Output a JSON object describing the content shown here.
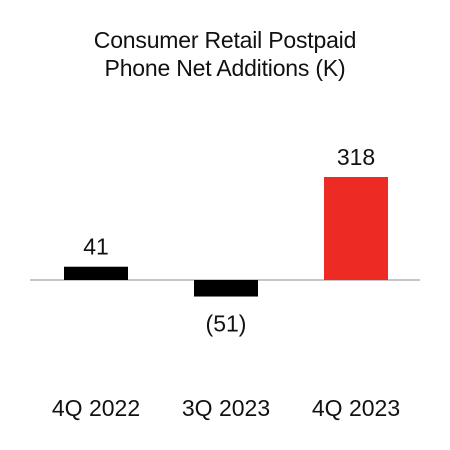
{
  "chart_data": {
    "type": "bar",
    "title_lines": [
      "Consumer Retail Postpaid",
      "Phone Net Additions (K)"
    ],
    "categories": [
      "4Q 2022",
      "3Q 2023",
      "4Q 2023"
    ],
    "values": [
      41,
      -51,
      318
    ],
    "value_labels": [
      "41",
      "(51)",
      "318"
    ],
    "colors": [
      "#000000",
      "#000000",
      "#ee2a24"
    ],
    "baseline_color": "#b3b3b3",
    "grid": false,
    "legend": "none",
    "ylim": [
      -51,
      318
    ]
  }
}
